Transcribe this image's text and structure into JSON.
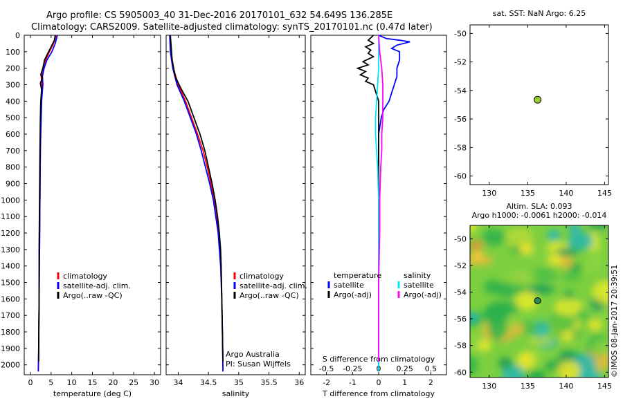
{
  "header": {
    "line1": "Argo profile: CS 5905003_40 31-Dec-2016 20170101_632 54.649S 136.285E",
    "line2": "Climatology: CARS2009. Satellite-adjusted climatology: synTS_20170101.nc (0.47d later)"
  },
  "credit": "©IMOS 08-Jan-2017 20:39:51",
  "colors": {
    "climatology": "#ff0000",
    "satellite": "#0000ff",
    "argo": "#000000",
    "salinity_satellite": "#00e5ee",
    "salinity_argo": "#ff00ff",
    "marker_fill": "#9acd32"
  },
  "chart_data": [
    {
      "id": "temperature",
      "type": "line",
      "xlabel": "temperature (deg C)",
      "ylabel": "",
      "xlim": [
        -1.5,
        31.5
      ],
      "ylim": [
        2060,
        0
      ],
      "xticks": [
        0,
        5,
        10,
        15,
        20,
        25,
        30
      ],
      "yticks": [
        0,
        100,
        200,
        300,
        400,
        500,
        600,
        700,
        800,
        900,
        1000,
        1100,
        1200,
        1300,
        1400,
        1500,
        1600,
        1700,
        1800,
        1900,
        2000
      ],
      "legend": [
        "climatology",
        "satellite-adj. clim.",
        "Argo(..raw -QC)"
      ],
      "series": [
        {
          "name": "climatology",
          "color": "#ff0000",
          "points": [
            [
              6.2,
              0
            ],
            [
              5.6,
              50
            ],
            [
              4.6,
              100
            ],
            [
              3.7,
              150
            ],
            [
              3.0,
              200
            ],
            [
              2.6,
              250
            ],
            [
              2.8,
              300
            ],
            [
              2.6,
              400
            ],
            [
              2.5,
              500
            ],
            [
              2.4,
              700
            ],
            [
              2.3,
              1000
            ],
            [
              2.2,
              1300
            ],
            [
              2.1,
              1600
            ],
            [
              2.0,
              1900
            ],
            [
              1.9,
              2040
            ]
          ]
        },
        {
          "name": "satellite-adj. clim.",
          "color": "#0000ff",
          "points": [
            [
              6.5,
              0
            ],
            [
              6.0,
              50
            ],
            [
              5.2,
              100
            ],
            [
              4.0,
              150
            ],
            [
              3.3,
              200
            ],
            [
              2.9,
              250
            ],
            [
              3.0,
              300
            ],
            [
              2.7,
              400
            ],
            [
              2.6,
              500
            ],
            [
              2.4,
              700
            ],
            [
              2.3,
              1000
            ],
            [
              2.2,
              1300
            ],
            [
              2.1,
              1600
            ],
            [
              2.0,
              1900
            ],
            [
              1.9,
              2040
            ]
          ]
        },
        {
          "name": "Argo(..raw -QC)",
          "color": "#000000",
          "points": [
            [
              6.0,
              0
            ],
            [
              5.8,
              30
            ],
            [
              4.8,
              80
            ],
            [
              4.2,
              110
            ],
            [
              3.4,
              150
            ],
            [
              3.0,
              200
            ],
            [
              2.5,
              240
            ],
            [
              2.9,
              260
            ],
            [
              2.4,
              290
            ],
            [
              2.7,
              330
            ],
            [
              2.5,
              400
            ],
            [
              2.4,
              500
            ],
            [
              2.3,
              700
            ],
            [
              2.2,
              1000
            ],
            [
              2.1,
              1300
            ],
            [
              2.1,
              1600
            ],
            [
              2.0,
              1900
            ],
            [
              2.0,
              1980
            ]
          ]
        }
      ]
    },
    {
      "id": "salinity",
      "type": "line",
      "xlabel": "salinity",
      "ylabel": "",
      "xlim": [
        33.8,
        36.1
      ],
      "ylim": [
        2060,
        0
      ],
      "xticks": [
        34,
        34.5,
        35,
        35.5,
        36
      ],
      "legend": [
        "climatology",
        "satellite-adj. clim.",
        "Argo(..raw -QC)"
      ],
      "annotations": [
        "Argo Australia",
        "PI: Susan Wijffels"
      ],
      "series": [
        {
          "name": "climatology",
          "color": "#ff0000",
          "points": [
            [
              33.86,
              0
            ],
            [
              33.88,
              100
            ],
            [
              33.92,
              200
            ],
            [
              34.0,
              300
            ],
            [
              34.12,
              400
            ],
            [
              34.22,
              500
            ],
            [
              34.32,
              600
            ],
            [
              34.41,
              700
            ],
            [
              34.48,
              800
            ],
            [
              34.54,
              900
            ],
            [
              34.6,
              1000
            ],
            [
              34.64,
              1100
            ],
            [
              34.67,
              1200
            ],
            [
              34.69,
              1300
            ],
            [
              34.71,
              1400
            ],
            [
              34.72,
              1600
            ],
            [
              34.73,
              1800
            ],
            [
              34.74,
              2040
            ]
          ]
        },
        {
          "name": "satellite-adj. clim.",
          "color": "#0000ff",
          "points": [
            [
              33.86,
              0
            ],
            [
              33.87,
              100
            ],
            [
              33.91,
              200
            ],
            [
              33.98,
              300
            ],
            [
              34.1,
              400
            ],
            [
              34.2,
              500
            ],
            [
              34.3,
              600
            ],
            [
              34.38,
              700
            ],
            [
              34.45,
              800
            ],
            [
              34.52,
              900
            ],
            [
              34.58,
              1000
            ],
            [
              34.62,
              1100
            ],
            [
              34.66,
              1200
            ],
            [
              34.68,
              1300
            ],
            [
              34.7,
              1400
            ],
            [
              34.72,
              1600
            ],
            [
              34.73,
              1800
            ],
            [
              34.74,
              2040
            ]
          ]
        },
        {
          "name": "Argo(..raw -QC)",
          "color": "#000000",
          "points": [
            [
              33.87,
              0
            ],
            [
              33.9,
              150
            ],
            [
              33.95,
              250
            ],
            [
              34.04,
              320
            ],
            [
              34.16,
              400
            ],
            [
              34.26,
              500
            ],
            [
              34.36,
              600
            ],
            [
              34.44,
              700
            ],
            [
              34.5,
              800
            ],
            [
              34.56,
              900
            ],
            [
              34.61,
              1000
            ],
            [
              34.65,
              1100
            ],
            [
              34.68,
              1200
            ],
            [
              34.7,
              1300
            ],
            [
              34.71,
              1400
            ],
            [
              34.72,
              1600
            ],
            [
              34.73,
              1800
            ],
            [
              34.74,
              1980
            ]
          ]
        }
      ]
    },
    {
      "id": "difference",
      "type": "line",
      "xlabel": "T difference from climatology",
      "x2label": "S difference from climatology",
      "xlim": [
        -2.6,
        2.6
      ],
      "x2lim": [
        -0.65,
        0.65
      ],
      "ylim": [
        2060,
        0
      ],
      "xticks": [
        -2,
        -1,
        0,
        1,
        2
      ],
      "x2ticks": [
        -0.5,
        -0.25,
        0,
        0.25,
        0.5
      ],
      "legend_temperature_title": "temperature",
      "legend_salinity_title": "salinity",
      "legend_temperature": [
        "satellite",
        "Argo(-adj)"
      ],
      "legend_salinity": [
        "satellite",
        "Argo(-adj)"
      ],
      "series": [
        {
          "name": "temperature satellite",
          "color": "#0000ff",
          "axis": "T",
          "points": [
            [
              0.0,
              0
            ],
            [
              0.3,
              20
            ],
            [
              0.8,
              30
            ],
            [
              1.2,
              40
            ],
            [
              0.7,
              60
            ],
            [
              0.5,
              80
            ],
            [
              0.8,
              100
            ],
            [
              0.8,
              150
            ],
            [
              0.7,
              200
            ],
            [
              0.7,
              250
            ],
            [
              0.6,
              300
            ],
            [
              0.5,
              350
            ],
            [
              0.4,
              400
            ],
            [
              0.2,
              450
            ],
            [
              0.1,
              500
            ],
            [
              0.05,
              550
            ],
            [
              0.0,
              600
            ],
            [
              0.0,
              800
            ],
            [
              0.0,
              1200
            ],
            [
              0.0,
              1600
            ],
            [
              0.0,
              2040
            ]
          ]
        },
        {
          "name": "temperature Argo(-adj)",
          "color": "#000000",
          "axis": "T",
          "points": [
            [
              -0.2,
              0
            ],
            [
              -0.4,
              30
            ],
            [
              -0.2,
              50
            ],
            [
              -0.5,
              70
            ],
            [
              -0.3,
              90
            ],
            [
              -0.4,
              110
            ],
            [
              -0.2,
              130
            ],
            [
              -0.6,
              160
            ],
            [
              -0.4,
              180
            ],
            [
              -0.8,
              200
            ],
            [
              -0.5,
              220
            ],
            [
              -0.7,
              240
            ],
            [
              -0.4,
              260
            ],
            [
              -0.5,
              280
            ],
            [
              -0.2,
              300
            ],
            [
              -0.1,
              350
            ],
            [
              0.0,
              400
            ],
            [
              0.0,
              600
            ],
            [
              0.0,
              1000
            ],
            [
              0.0,
              1400
            ],
            [
              0.0,
              1800
            ],
            [
              0.0,
              1980
            ]
          ]
        },
        {
          "name": "salinity satellite",
          "color": "#00e5ee",
          "axis": "S",
          "points": [
            [
              0.0,
              0
            ],
            [
              0.0,
              100
            ],
            [
              0.0,
              200
            ],
            [
              -0.01,
              300
            ],
            [
              -0.02,
              400
            ],
            [
              -0.03,
              500
            ],
            [
              -0.03,
              600
            ],
            [
              -0.02,
              700
            ],
            [
              -0.01,
              800
            ],
            [
              0.0,
              1000
            ],
            [
              0.0,
              1200
            ],
            [
              0.0,
              1500
            ],
            [
              0.0,
              1800
            ],
            [
              0.0,
              2040
            ]
          ]
        },
        {
          "name": "salinity Argo(-adj)",
          "color": "#ff00ff",
          "axis": "S",
          "points": [
            [
              0.0,
              0
            ],
            [
              0.01,
              100
            ],
            [
              0.03,
              200
            ],
            [
              0.04,
              300
            ],
            [
              0.04,
              400
            ],
            [
              0.04,
              500
            ],
            [
              0.03,
              600
            ],
            [
              0.03,
              700
            ],
            [
              0.02,
              800
            ],
            [
              0.01,
              1000
            ],
            [
              0.01,
              1200
            ],
            [
              0.0,
              1500
            ],
            [
              0.0,
              1800
            ],
            [
              0.0,
              1980
            ]
          ]
        }
      ]
    },
    {
      "id": "sst-map",
      "type": "scatter",
      "title": "sat. SST: NaN Argo: 6.25",
      "xlim": [
        127.5,
        145.5
      ],
      "ylim": [
        -60.6,
        -49.4
      ],
      "xticks": [
        130,
        135,
        140,
        145
      ],
      "yticks": [
        -50,
        -52,
        -54,
        -56,
        -58,
        -60
      ],
      "points": [
        [
          136.285,
          -54.649
        ]
      ]
    },
    {
      "id": "sla-map",
      "type": "heatmap",
      "title": "Altim. SLA: 0.093",
      "subtitle": "Argo h1000: -0.0061 h2000: -0.014",
      "xlim": [
        127.5,
        145.5
      ],
      "ylim": [
        -60.4,
        -49.0
      ],
      "xticks": [
        130,
        135,
        140,
        145
      ],
      "yticks": [
        -50,
        -52,
        -54,
        -56,
        -58,
        -60
      ],
      "points": [
        [
          136.285,
          -54.649
        ]
      ]
    }
  ]
}
